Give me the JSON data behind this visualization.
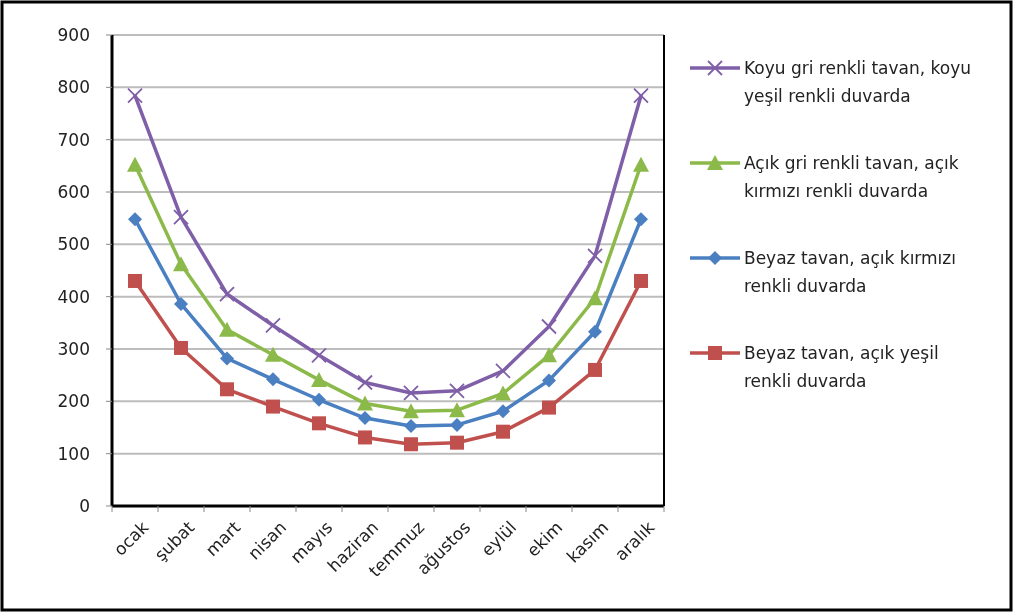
{
  "chart_data": {
    "type": "line",
    "categories": [
      "ocak",
      "şubat",
      "mart",
      "nisan",
      "mayıs",
      "haziran",
      "temmuz",
      "ağustos",
      "eylül",
      "ekim",
      "kasım",
      "aralık"
    ],
    "series": [
      {
        "name": "Koyu gri renkli tavan, koyu yeşil renkli duvarda",
        "color": "#7f5fa8",
        "marker": "cross",
        "values": [
          784,
          552,
          405,
          345,
          288,
          236,
          216,
          220,
          258,
          343,
          478,
          784
        ]
      },
      {
        "name": "Açık gri renkli tavan, açık kırmızı renkli duvarda",
        "color": "#8cba4a",
        "marker": "triangle",
        "values": [
          652,
          462,
          337,
          289,
          241,
          196,
          181,
          183,
          215,
          288,
          397,
          652
        ]
      },
      {
        "name": "Beyaz tavan, açık kırmızı renkli duvarda",
        "color": "#4a7fc1",
        "marker": "diamond",
        "values": [
          548,
          386,
          282,
          242,
          203,
          168,
          153,
          155,
          181,
          240,
          333,
          548
        ]
      },
      {
        "name": "Beyaz tavan, açık yeşil renkli duvarda",
        "color": "#c0504d",
        "marker": "square",
        "values": [
          430,
          302,
          223,
          190,
          158,
          131,
          118,
          121,
          142,
          188,
          260,
          430
        ]
      }
    ],
    "ylim": [
      0,
      900
    ],
    "yticks": [
      0,
      100,
      200,
      300,
      400,
      500,
      600,
      700,
      800,
      900
    ],
    "grid": "y",
    "legend": "right",
    "line_style": "solid"
  }
}
